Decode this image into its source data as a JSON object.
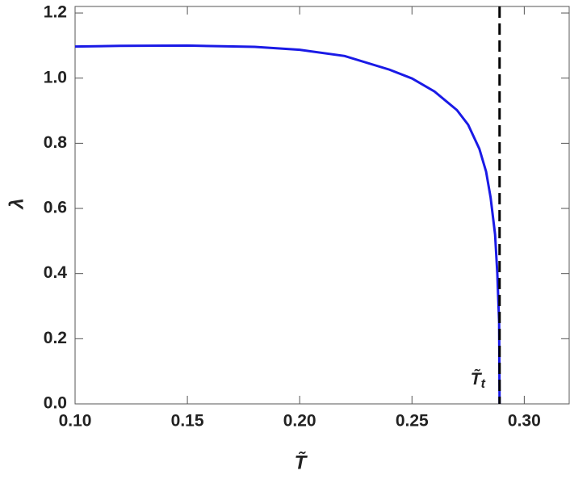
{
  "chart_data": {
    "type": "line",
    "x_label": "T̃",
    "y_label": "λ",
    "x": [
      0.1,
      0.12,
      0.15,
      0.18,
      0.2,
      0.22,
      0.24,
      0.25,
      0.26,
      0.27,
      0.275,
      0.28,
      0.283,
      0.285,
      0.287,
      0.288,
      0.2888,
      0.289
    ],
    "series": [
      {
        "color": "#1a1ae6",
        "values": [
          1.097,
          1.099,
          1.1,
          1.096,
          1.087,
          1.068,
          1.026,
          0.999,
          0.959,
          0.902,
          0.857,
          0.783,
          0.713,
          0.634,
          0.52,
          0.4,
          0.25,
          0.0
        ]
      }
    ],
    "xlim": [
      0.1,
      0.32
    ],
    "ylim": [
      0,
      1.22
    ],
    "xticks": [
      {
        "value": 0.1,
        "label": "0.10"
      },
      0.15,
      {
        "value": 0.2,
        "label": "0.20"
      },
      0.25,
      {
        "value": 0.3,
        "label": "0.30"
      }
    ],
    "yticks": [
      {
        "value": 0,
        "label": "0.0"
      },
      0.2,
      0.4,
      0.6,
      0.8,
      {
        "value": 1,
        "label": "1.0"
      },
      1.2
    ],
    "vline": {
      "x": 0.289,
      "color": "#000000",
      "dashed": true
    },
    "annotation": {
      "text": "T̃",
      "subscript": "t"
    }
  }
}
